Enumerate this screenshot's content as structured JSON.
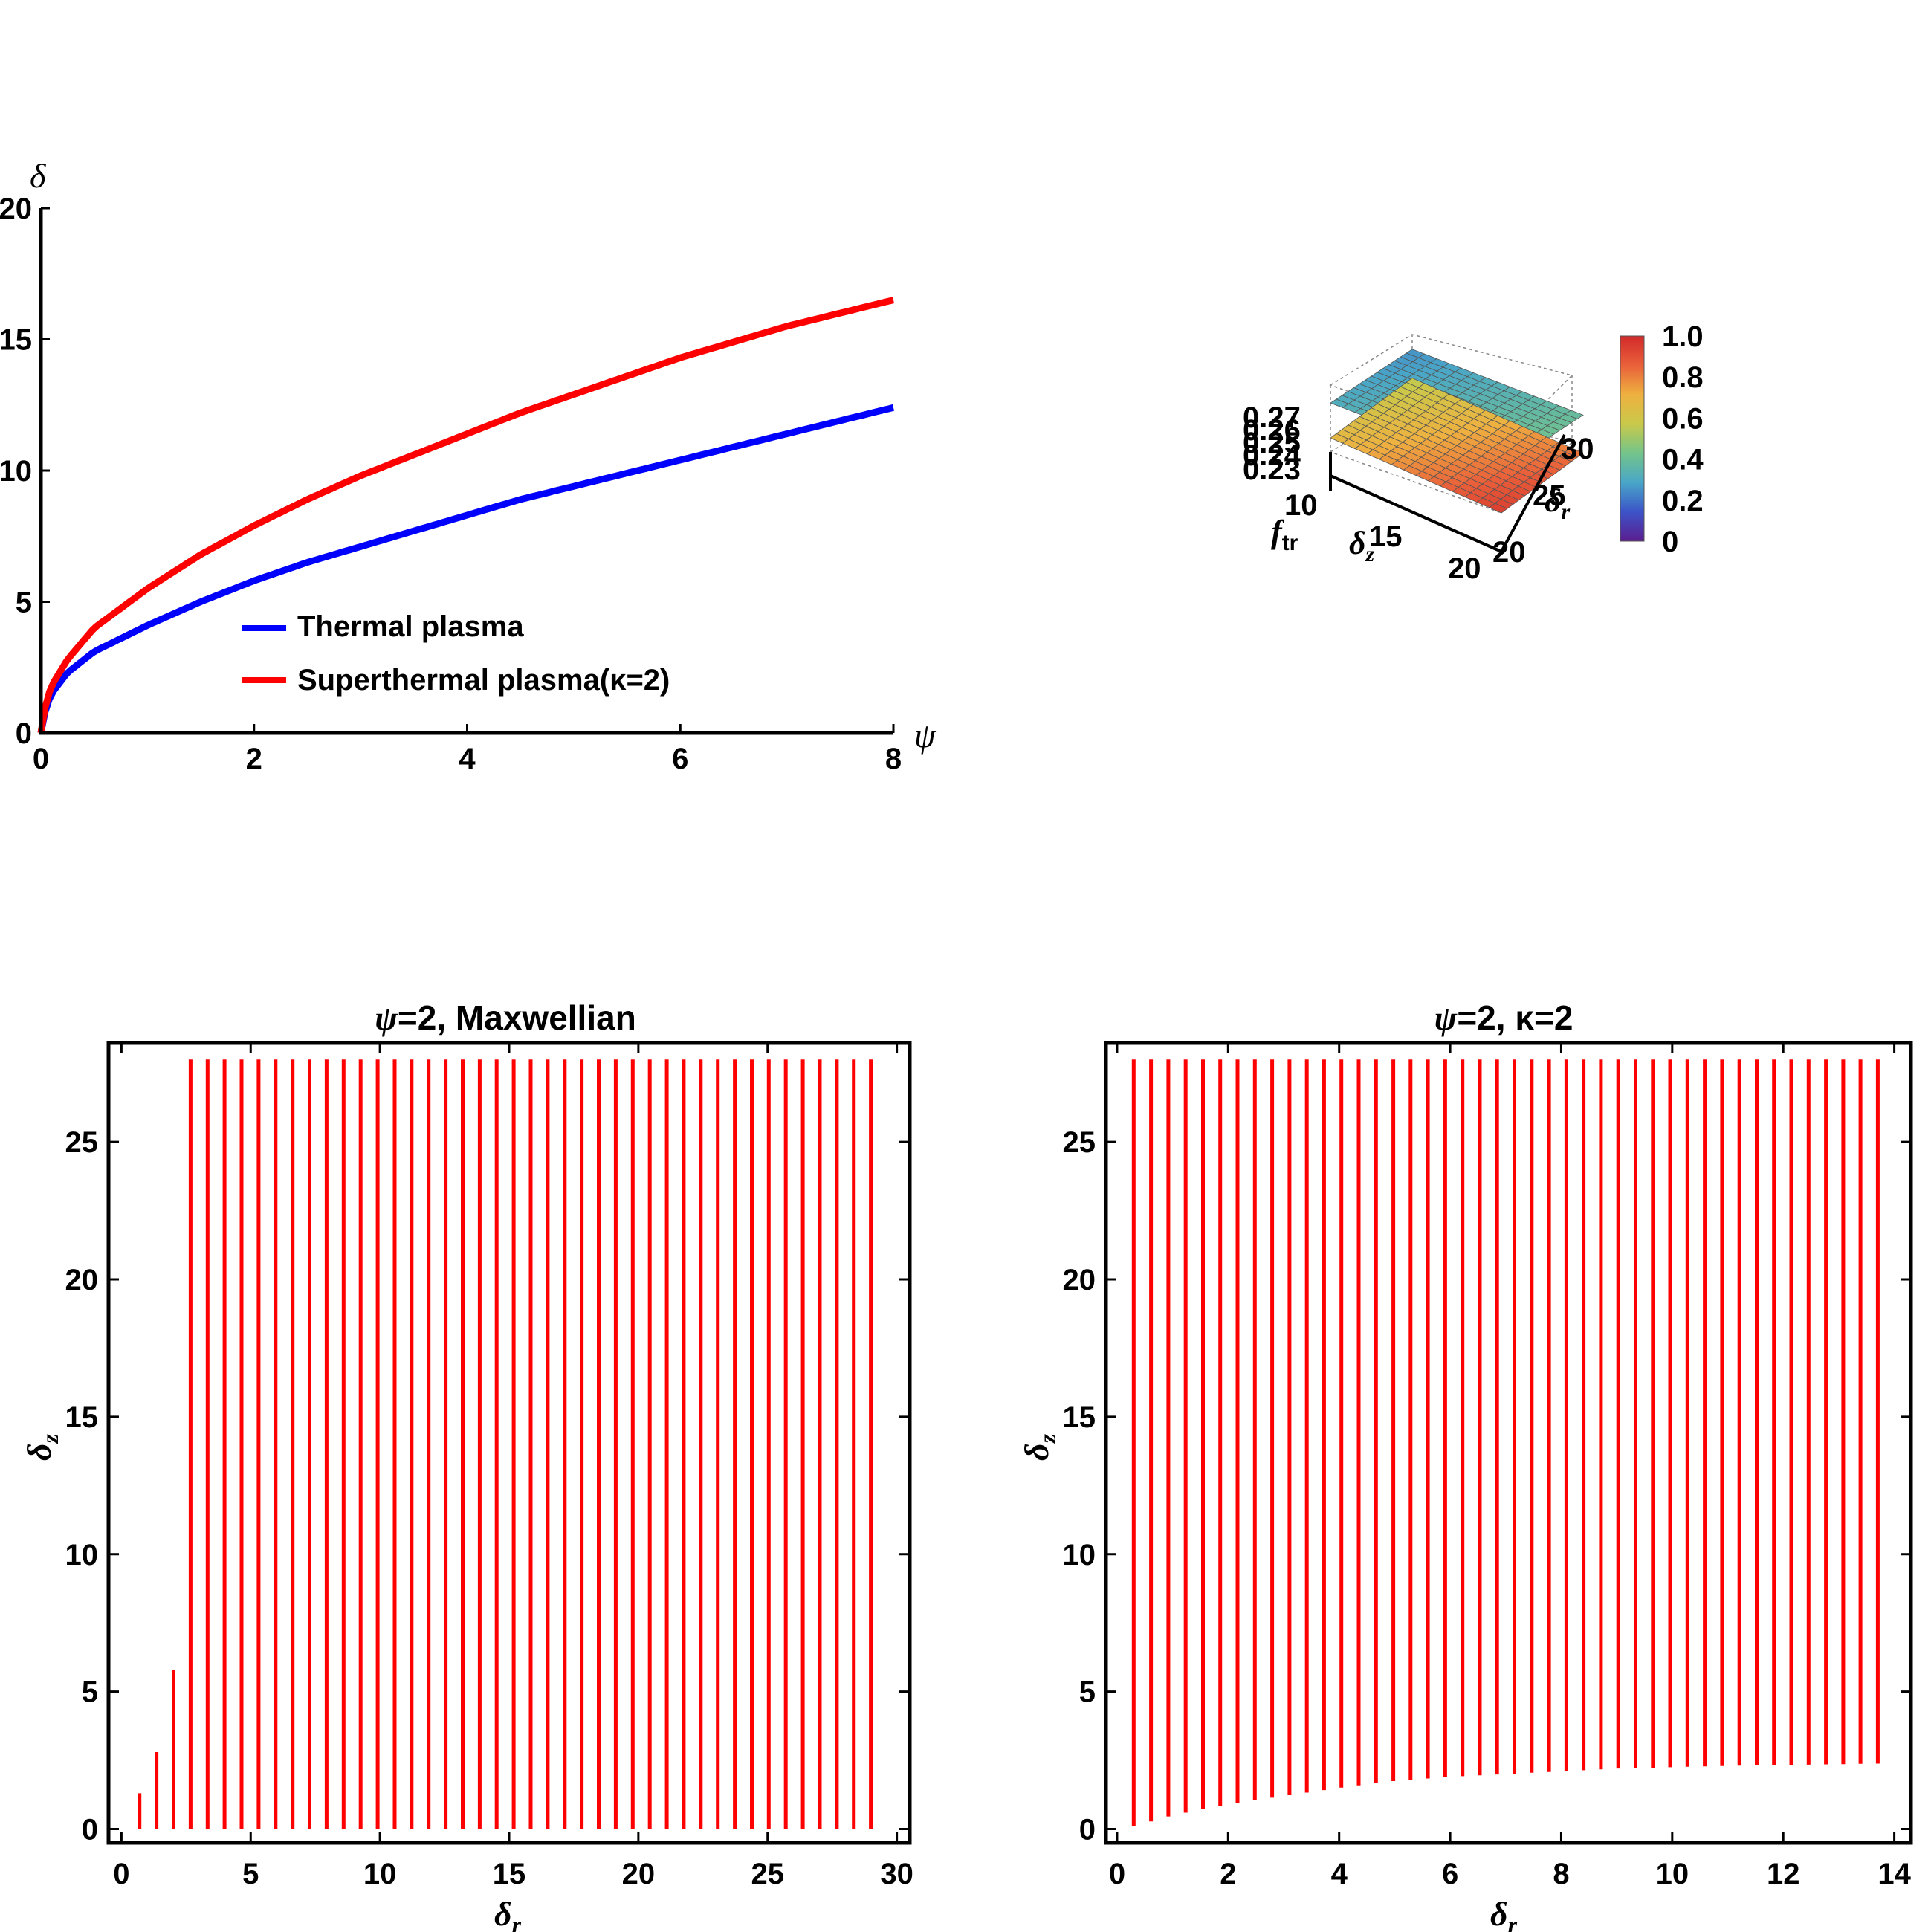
{
  "chart_data": [
    {
      "type": "line",
      "xlabel": "ψ",
      "ylabel": "δ",
      "xlim": [
        0,
        8
      ],
      "ylim": [
        0,
        20
      ],
      "xticks": [
        "0",
        "2",
        "4",
        "6",
        "8"
      ],
      "yticks": [
        "0",
        "5",
        "10",
        "15",
        "20"
      ],
      "legend_position": "center",
      "series": [
        {
          "name": "Thermal plasma",
          "color": "#0000ff",
          "x": [
            0,
            0.05,
            0.1,
            0.25,
            0.5,
            1,
            1.5,
            2,
            2.5,
            3,
            3.5,
            4,
            4.5,
            5,
            5.5,
            6,
            6.5,
            7,
            7.5,
            8
          ],
          "y": [
            0,
            1.0,
            1.5,
            2.3,
            3.1,
            4.1,
            5.0,
            5.8,
            6.5,
            7.1,
            7.7,
            8.3,
            8.9,
            9.4,
            9.9,
            10.4,
            10.9,
            11.4,
            11.9,
            12.4
          ]
        },
        {
          "name": "Superthermal plasma(κ=2)",
          "color": "#ff0000",
          "x": [
            0,
            0.05,
            0.1,
            0.25,
            0.5,
            1,
            1.5,
            2,
            2.5,
            3,
            3.5,
            4,
            4.5,
            5,
            5.5,
            6,
            6.5,
            7,
            7.5,
            8
          ],
          "y": [
            0,
            1.2,
            1.8,
            2.8,
            4.0,
            5.5,
            6.8,
            7.9,
            8.9,
            9.8,
            10.6,
            11.4,
            12.2,
            12.9,
            13.6,
            14.3,
            14.9,
            15.5,
            16.0,
            16.5
          ]
        }
      ]
    },
    {
      "type": "surface3d",
      "axis_labels": {
        "z": "f",
        "z_sub": "tr",
        "x": "δ",
        "x_sub": "z",
        "y": "δ",
        "y_sub": "r"
      },
      "z_ticks": [
        "0.27",
        "0.26",
        "0.25",
        "0.24",
        "0.23"
      ],
      "x_ticks": [
        "10",
        "15",
        "20"
      ],
      "y_ticks": [
        "20",
        "25",
        "30"
      ],
      "colorbar": {
        "ticks": [
          "1.0",
          "0.8",
          "0.6",
          "0.4",
          "0.2",
          "0"
        ],
        "colors": [
          "#5b1d8f",
          "#3c54c8",
          "#49a6c8",
          "#73c48a",
          "#c9c94a",
          "#eeb140",
          "#e9603a",
          "#d12a2a"
        ]
      },
      "surfaces": [
        {
          "z_range": [
            0.25,
            0.27
          ],
          "color_range": [
            0.55,
            0.95
          ]
        },
        {
          "z_range": [
            0.23,
            0.24
          ],
          "color_range": [
            0.25,
            0.45
          ]
        }
      ]
    },
    {
      "type": "region",
      "title_sym": "ψ",
      "title_rest": "=2, Maxwellian",
      "xlabel": "δ",
      "xlabel_sub": "r",
      "ylabel": "δ",
      "ylabel_sub": "z",
      "xlim": [
        -0.5,
        30.5
      ],
      "ylim": [
        -0.5,
        28.6
      ],
      "xticks": [
        "0",
        "5",
        "10",
        "15",
        "20",
        "25",
        "30"
      ],
      "yticks": [
        "0",
        "5",
        "10",
        "15",
        "20",
        "25"
      ],
      "color": "#ff0000",
      "x_start": 0.7,
      "x_step": 0.658,
      "count": 44,
      "top": 28.0,
      "bottom_y": 0,
      "partial_tops": [
        1.3,
        2.8,
        5.8
      ]
    },
    {
      "type": "region",
      "title_sym": "ψ",
      "title_rest": "=2, κ=2",
      "xlabel": "δ",
      "xlabel_sub": "r",
      "ylabel": "δ",
      "ylabel_sub": "z",
      "xlim": [
        -0.2,
        14.3
      ],
      "ylim": [
        -0.5,
        28.6
      ],
      "xticks": [
        "0",
        "2",
        "4",
        "6",
        "8",
        "10",
        "12",
        "14"
      ],
      "yticks": [
        "0",
        "5",
        "10",
        "15",
        "20",
        "25"
      ],
      "color": "#ff0000",
      "x_start": 0.3,
      "x_step": 0.3117,
      "count": 44,
      "top": 28.0,
      "bottom_curve": {
        "x": [
          0.3,
          1,
          2,
          3,
          4,
          5,
          6,
          7,
          8,
          9,
          10,
          11,
          12,
          13,
          13.7
        ],
        "y": [
          0.1,
          0.5,
          0.9,
          1.2,
          1.5,
          1.75,
          1.9,
          2.0,
          2.1,
          2.2,
          2.25,
          2.3,
          2.33,
          2.36,
          2.38
        ]
      }
    }
  ]
}
